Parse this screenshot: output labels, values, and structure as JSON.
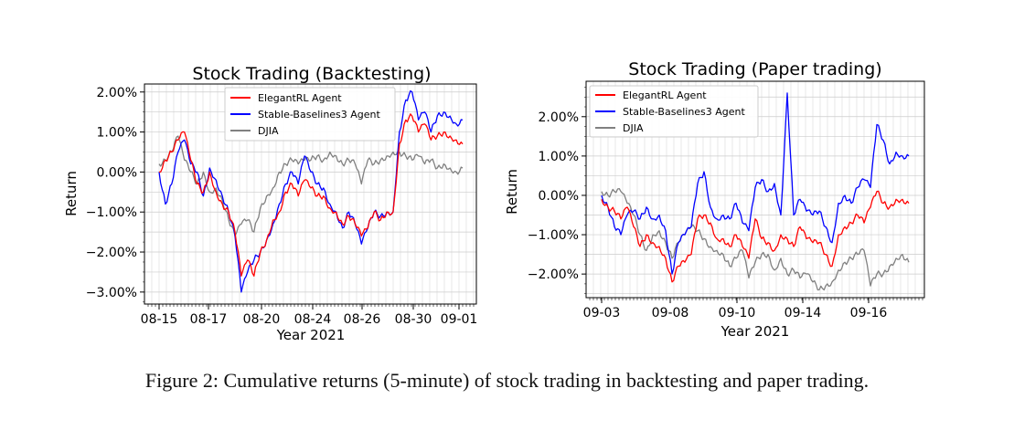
{
  "caption": "Figure 2: Cumulative returns (5-minute) of stock trading in backtesting and paper trading.",
  "chart_data": [
    {
      "type": "line",
      "title": "Stock Trading (Backtesting)",
      "xlabel": "Year 2021",
      "ylabel": "Return",
      "x_tick_labels": [
        "08-15",
        "08-17",
        "08-20",
        "08-24",
        "08-26",
        "08-30",
        "09-01"
      ],
      "y_tick_labels": [
        "2.00%",
        "1.00%",
        "0.00%",
        "−1.00%",
        "−2.00%",
        "−3.00%"
      ],
      "ylim": [
        -3.3,
        2.2
      ],
      "grid": true,
      "legend_position": "top-center",
      "x": [
        0,
        0.5,
        1,
        1.5,
        2,
        2.5,
        3,
        3.5,
        4,
        4.5,
        5,
        5.5,
        6,
        6.5,
        7,
        7.5,
        8,
        8.5,
        9,
        9.5,
        10,
        10.5,
        11,
        11.5,
        12,
        12.5,
        13,
        13.5,
        14,
        14.5,
        15,
        15.5,
        16,
        16.5,
        17,
        17.5,
        18,
        18.5,
        19,
        19.5,
        20,
        20.5,
        21,
        21.5,
        22,
        22.5,
        23,
        23.5,
        24
      ],
      "series": [
        {
          "name": "ElegantRL Agent",
          "color": "#ff0000",
          "values": [
            0.0,
            0.3,
            0.5,
            0.8,
            1.0,
            0.3,
            -0.3,
            -0.5,
            0.0,
            -0.5,
            -0.8,
            -1.0,
            -1.5,
            -2.6,
            -2.2,
            -2.6,
            -2.0,
            -1.7,
            -1.2,
            -1.0,
            -0.5,
            -0.3,
            -0.6,
            -0.2,
            -0.4,
            -0.6,
            -0.6,
            -0.9,
            -1.0,
            -1.3,
            -1.1,
            -1.3,
            -1.6,
            -1.4,
            -1.0,
            -1.2,
            -1.0,
            -1.0,
            0.7,
            1.3,
            1.4,
            1.0,
            1.2,
            0.8,
            0.9,
            1.0,
            0.9,
            0.8,
            0.7
          ]
        },
        {
          "name": "Stable-Baselines3 Agent",
          "color": "#0000ff",
          "values": [
            0.0,
            -0.8,
            -0.3,
            0.5,
            0.8,
            0.2,
            0.0,
            -0.6,
            0.1,
            -0.2,
            -0.6,
            -1.0,
            -1.6,
            -3.0,
            -2.5,
            -2.2,
            -2.0,
            -1.7,
            -1.3,
            -0.8,
            -0.3,
            0.0,
            -0.3,
            0.4,
            0.0,
            -0.3,
            -0.4,
            -0.8,
            -1.0,
            -1.4,
            -1.0,
            -1.3,
            -1.8,
            -1.4,
            -1.0,
            -1.1,
            -1.0,
            -1.0,
            1.0,
            1.8,
            2.0,
            1.3,
            1.5,
            1.0,
            1.4,
            1.5,
            1.4,
            1.2,
            1.3
          ]
        },
        {
          "name": "DJIA",
          "color": "#808080",
          "values": [
            0.2,
            0.3,
            0.5,
            0.9,
            0.3,
            0.0,
            -0.3,
            0.0,
            -0.5,
            -0.4,
            -0.7,
            -1.2,
            -1.6,
            -1.3,
            -1.2,
            -1.5,
            -0.9,
            -0.6,
            -0.4,
            0.0,
            0.2,
            0.3,
            0.2,
            0.3,
            0.3,
            0.4,
            0.3,
            0.5,
            0.4,
            0.2,
            0.3,
            0.2,
            -0.3,
            0.3,
            0.2,
            0.3,
            0.4,
            0.5,
            0.5,
            0.4,
            0.3,
            0.4,
            0.2,
            0.3,
            0.1,
            0.2,
            0.1,
            0.0,
            0.1
          ]
        }
      ]
    },
    {
      "type": "line",
      "title": "Stock Trading (Paper trading)",
      "xlabel": "Year 2021",
      "ylabel": "Return",
      "x_tick_labels": [
        "09-03",
        "09-08",
        "09-10",
        "09-14",
        "09-16"
      ],
      "y_tick_labels": [
        "2.00%",
        "1.00%",
        "0.00%",
        "−1.00%",
        "−2.00%"
      ],
      "ylim": [
        -2.6,
        2.9
      ],
      "grid": true,
      "legend_position": "top-left",
      "x": [
        0,
        0.5,
        1,
        1.5,
        2,
        2.5,
        3,
        3.5,
        4,
        4.5,
        5,
        5.5,
        6,
        6.5,
        7,
        7.5,
        8,
        8.5,
        9,
        9.5,
        10,
        10.5,
        11,
        11.5,
        12,
        12.5,
        13,
        13.5,
        14,
        14.5,
        15,
        15.5,
        16,
        16.5,
        17,
        17.5,
        18,
        18.5,
        19,
        19.5,
        20,
        20.5,
        21,
        21.5,
        22,
        22.5,
        23,
        23.5,
        24
      ],
      "series": [
        {
          "name": "ElegantRL Agent",
          "color": "#ff0000",
          "values": [
            -0.1,
            -0.3,
            -0.4,
            -0.6,
            -0.3,
            -0.8,
            -1.3,
            -1.0,
            -1.2,
            -1.3,
            -1.6,
            -2.2,
            -1.8,
            -1.7,
            -1.5,
            -0.6,
            -0.5,
            -0.7,
            -1.1,
            -1.1,
            -1.3,
            -1.0,
            -1.3,
            -1.6,
            -0.6,
            -1.1,
            -1.2,
            -1.4,
            -1.0,
            -1.1,
            -1.3,
            -0.8,
            -1.1,
            -1.2,
            -1.2,
            -1.5,
            -1.8,
            -1.0,
            -0.8,
            -0.7,
            -0.5,
            -0.7,
            -0.3,
            0.1,
            -0.2,
            -0.3,
            -0.1,
            -0.1,
            -0.2
          ]
        },
        {
          "name": "Stable-Baselines3 Agent",
          "color": "#0000ff",
          "values": [
            0.0,
            -0.3,
            -0.8,
            -1.0,
            -0.5,
            -0.4,
            -0.6,
            -0.3,
            -0.6,
            -0.5,
            -0.9,
            -2.0,
            -1.2,
            -1.0,
            -0.8,
            0.3,
            0.6,
            -0.3,
            -0.6,
            -0.5,
            -0.6,
            -0.2,
            -0.7,
            -0.9,
            0.2,
            0.4,
            0.1,
            0.3,
            -0.5,
            2.6,
            -0.5,
            -0.1,
            -0.4,
            -0.5,
            -0.4,
            -0.8,
            -1.2,
            -0.2,
            0.0,
            -0.2,
            0.2,
            0.4,
            0.2,
            1.8,
            1.4,
            0.8,
            1.1,
            1.0,
            1.0
          ]
        },
        {
          "name": "DJIA",
          "color": "#808080",
          "values": [
            0.1,
            0.0,
            0.1,
            0.1,
            -0.2,
            -0.5,
            -1.0,
            -1.4,
            -1.0,
            -0.9,
            -1.2,
            -1.6,
            -1.2,
            -1.0,
            -0.8,
            -0.9,
            -1.1,
            -1.3,
            -1.4,
            -1.5,
            -1.8,
            -1.6,
            -1.4,
            -2.1,
            -1.7,
            -1.5,
            -1.5,
            -1.9,
            -1.6,
            -2.0,
            -1.9,
            -2.1,
            -2.0,
            -2.2,
            -2.4,
            -2.3,
            -2.2,
            -1.9,
            -1.7,
            -1.6,
            -1.5,
            -1.4,
            -2.3,
            -2.0,
            -2.0,
            -1.8,
            -1.6,
            -1.5,
            -1.7
          ]
        }
      ]
    }
  ]
}
